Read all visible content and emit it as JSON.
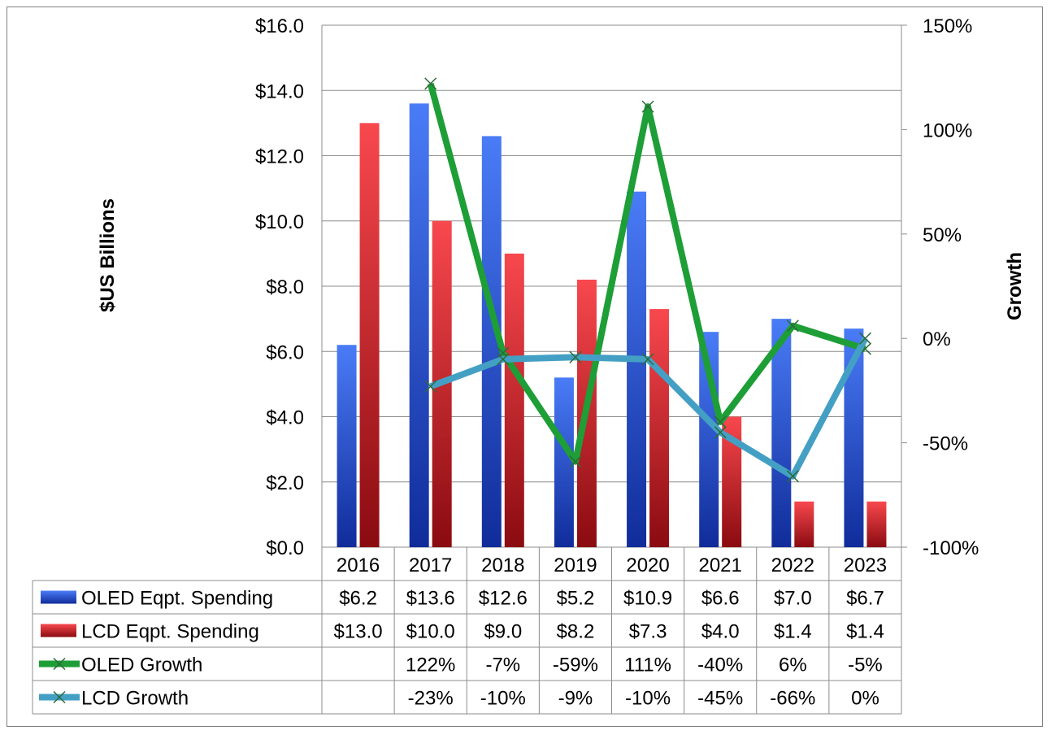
{
  "chart_data": {
    "type": "bar",
    "title": "",
    "categories": [
      "2016",
      "2017",
      "2018",
      "2019",
      "2020",
      "2021",
      "2022",
      "2023"
    ],
    "ylabel": "$US Billions",
    "y2label": "Growth",
    "ylim": [
      0,
      16
    ],
    "y2lim": [
      -1.0,
      1.5
    ],
    "y_ticks": [
      "$0.0",
      "$2.0",
      "$4.0",
      "$6.0",
      "$8.0",
      "$10.0",
      "$12.0",
      "$14.0",
      "$16.0"
    ],
    "y2_ticks": [
      "-100%",
      "-50%",
      "0%",
      "50%",
      "100%",
      "150%"
    ],
    "grid": true,
    "series": [
      {
        "name": "OLED Eqpt. Spending",
        "kind": "bar",
        "axis": "left",
        "color": "#3a63e8",
        "values": [
          6.2,
          13.6,
          12.6,
          5.2,
          10.9,
          6.6,
          7.0,
          6.7
        ],
        "labels": [
          "$6.2",
          "$13.6",
          "$12.6",
          "$5.2",
          "$10.9",
          "$6.6",
          "$7.0",
          "$6.7"
        ]
      },
      {
        "name": "LCD Eqpt. Spending",
        "kind": "bar",
        "axis": "left",
        "color": "#e8333a",
        "values": [
          13.0,
          10.0,
          9.0,
          8.2,
          7.3,
          4.0,
          1.4,
          1.4
        ],
        "labels": [
          "$13.0",
          "$10.0",
          "$9.0",
          "$8.2",
          "$7.3",
          "$4.0",
          "$1.4",
          "$1.4"
        ]
      },
      {
        "name": "OLED Growth",
        "kind": "line",
        "axis": "right",
        "color": "#1e9e36",
        "values": [
          null,
          1.22,
          -0.07,
          -0.59,
          1.11,
          -0.4,
          0.06,
          -0.05
        ],
        "labels": [
          "",
          "122%",
          "-7%",
          "-59%",
          "111%",
          "-40%",
          "6%",
          "-5%"
        ]
      },
      {
        "name": "LCD Growth",
        "kind": "line",
        "axis": "right",
        "color": "#43a0c4",
        "values": [
          null,
          -0.23,
          -0.1,
          -0.09,
          -0.1,
          -0.45,
          -0.66,
          0.0
        ],
        "labels": [
          "",
          "-23%",
          "-10%",
          "-9%",
          "-10%",
          "-45%",
          "-66%",
          "0%"
        ]
      }
    ]
  }
}
